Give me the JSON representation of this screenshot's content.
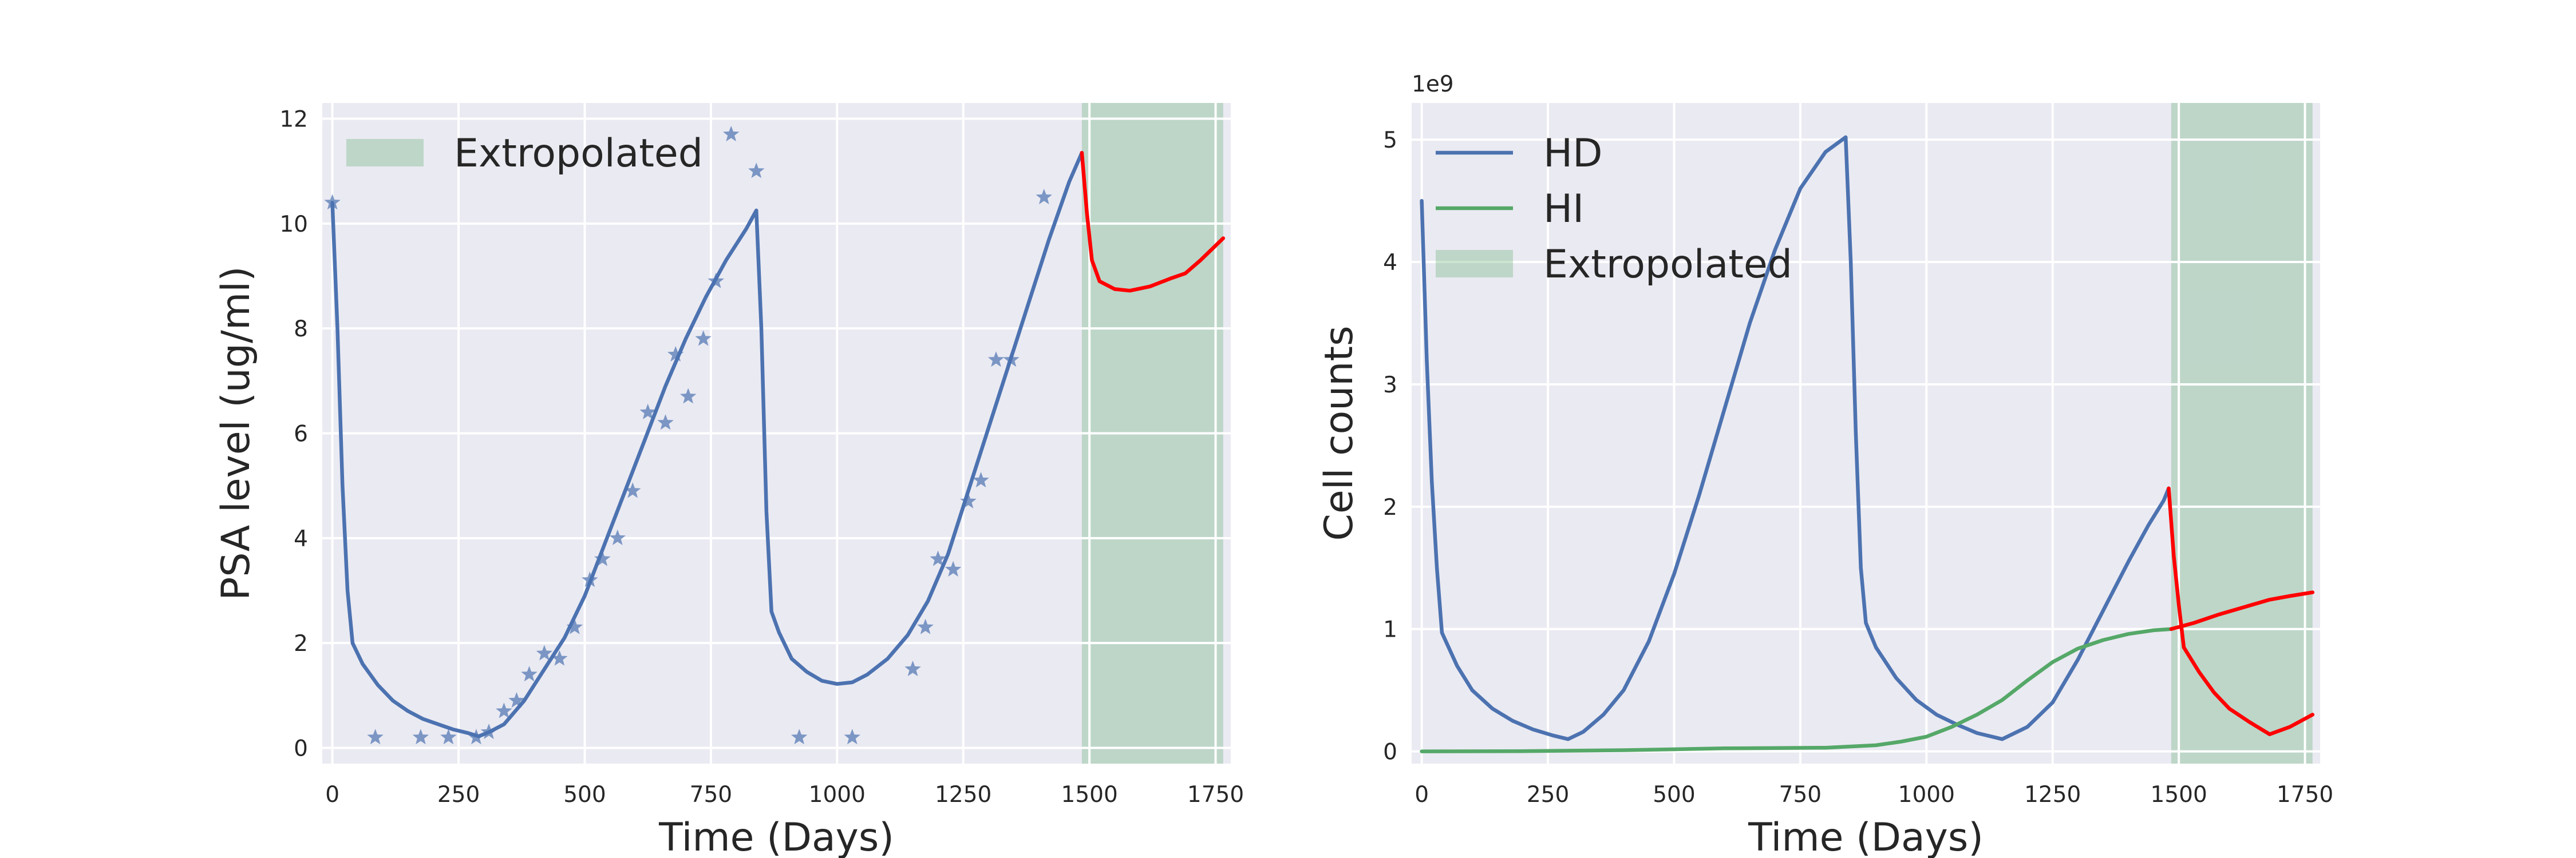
{
  "colors": {
    "axes_bg": "#EAEAF2",
    "grid": "#FFFFFF",
    "blue": "#4C72B0",
    "green": "#55A868",
    "red": "#FF0000",
    "shade": "#55A868"
  },
  "chart_data": [
    {
      "type": "line",
      "xlabel": "Time (Days)",
      "ylabel": "PSA level (ug/ml)",
      "xlim": [
        -20,
        1780
      ],
      "ylim": [
        -0.3,
        12.3
      ],
      "x_ticks": [
        0,
        250,
        500,
        750,
        1000,
        1250,
        1500,
        1750
      ],
      "y_ticks": [
        0,
        2,
        4,
        6,
        8,
        10,
        12
      ],
      "grid": true,
      "legend_position": "top-left",
      "legend": [
        {
          "label": "Extropolated",
          "kind": "patch",
          "color": "#55A868"
        }
      ],
      "shaded_region": {
        "label": "Extropolated",
        "x_start": 1485,
        "x_end": 1765
      },
      "series": [
        {
          "kind": "line",
          "color": "#4C72B0",
          "points": [
            [
              0,
              10.4
            ],
            [
              10,
              8.0
            ],
            [
              20,
              5.0
            ],
            [
              30,
              3.0
            ],
            [
              40,
              2.0
            ],
            [
              60,
              1.6
            ],
            [
              90,
              1.2
            ],
            [
              120,
              0.9
            ],
            [
              150,
              0.7
            ],
            [
              180,
              0.55
            ],
            [
              210,
              0.45
            ],
            [
              240,
              0.35
            ],
            [
              270,
              0.28
            ],
            [
              290,
              0.22
            ],
            [
              310,
              0.3
            ],
            [
              340,
              0.45
            ],
            [
              380,
              0.9
            ],
            [
              420,
              1.5
            ],
            [
              460,
              2.1
            ],
            [
              500,
              2.9
            ],
            [
              540,
              3.9
            ],
            [
              580,
              4.9
            ],
            [
              620,
              5.9
            ],
            [
              660,
              6.9
            ],
            [
              700,
              7.8
            ],
            [
              740,
              8.6
            ],
            [
              780,
              9.3
            ],
            [
              820,
              9.9
            ],
            [
              840,
              10.25
            ],
            [
              850,
              8.0
            ],
            [
              860,
              4.5
            ],
            [
              870,
              2.6
            ],
            [
              885,
              2.2
            ],
            [
              910,
              1.7
            ],
            [
              940,
              1.45
            ],
            [
              970,
              1.28
            ],
            [
              1000,
              1.22
            ],
            [
              1030,
              1.25
            ],
            [
              1060,
              1.4
            ],
            [
              1100,
              1.7
            ],
            [
              1140,
              2.15
            ],
            [
              1180,
              2.8
            ],
            [
              1220,
              3.7
            ],
            [
              1260,
              4.9
            ],
            [
              1300,
              6.1
            ],
            [
              1340,
              7.3
            ],
            [
              1380,
              8.5
            ],
            [
              1420,
              9.7
            ],
            [
              1460,
              10.8
            ],
            [
              1485,
              11.35
            ]
          ]
        },
        {
          "kind": "line",
          "color": "#FF0000",
          "points": [
            [
              1485,
              11.35
            ],
            [
              1495,
              10.2
            ],
            [
              1505,
              9.3
            ],
            [
              1520,
              8.9
            ],
            [
              1550,
              8.75
            ],
            [
              1580,
              8.72
            ],
            [
              1620,
              8.8
            ],
            [
              1660,
              8.95
            ],
            [
              1690,
              9.05
            ],
            [
              1720,
              9.3
            ],
            [
              1765,
              9.72
            ]
          ]
        },
        {
          "kind": "scatter",
          "marker": "star",
          "color": "#4C72B0",
          "points": [
            [
              0,
              10.4
            ],
            [
              85,
              0.2
            ],
            [
              175,
              0.2
            ],
            [
              230,
              0.2
            ],
            [
              285,
              0.2
            ],
            [
              310,
              0.3
            ],
            [
              340,
              0.7
            ],
            [
              365,
              0.9
            ],
            [
              390,
              1.4
            ],
            [
              420,
              1.8
            ],
            [
              450,
              1.7
            ],
            [
              480,
              2.3
            ],
            [
              510,
              3.2
            ],
            [
              535,
              3.6
            ],
            [
              565,
              4.0
            ],
            [
              595,
              4.9
            ],
            [
              625,
              6.4
            ],
            [
              660,
              6.2
            ],
            [
              680,
              7.5
            ],
            [
              705,
              6.7
            ],
            [
              735,
              7.8
            ],
            [
              760,
              8.9
            ],
            [
              790,
              11.7
            ],
            [
              840,
              11.0
            ],
            [
              925,
              0.2
            ],
            [
              1030,
              0.2
            ],
            [
              1150,
              1.5
            ],
            [
              1175,
              2.3
            ],
            [
              1200,
              3.6
            ],
            [
              1230,
              3.4
            ],
            [
              1260,
              4.7
            ],
            [
              1285,
              5.1
            ],
            [
              1315,
              7.4
            ],
            [
              1345,
              7.4
            ],
            [
              1410,
              10.5
            ]
          ]
        }
      ]
    },
    {
      "type": "line",
      "xlabel": "Time (Days)",
      "ylabel": "Cell counts",
      "y_offset_label": "1e9",
      "xlim": [
        -20,
        1780
      ],
      "ylim": [
        -100000000.0,
        5300000000.0
      ],
      "x_ticks": [
        0,
        250,
        500,
        750,
        1000,
        1250,
        1500,
        1750
      ],
      "y_ticks": [
        0,
        1,
        2,
        3,
        4,
        5
      ],
      "y_tick_scale": 1000000000.0,
      "grid": true,
      "legend_position": "top-left",
      "legend": [
        {
          "label": "HD",
          "kind": "line",
          "color": "#4C72B0"
        },
        {
          "label": "HI",
          "kind": "line",
          "color": "#55A868"
        },
        {
          "label": "Extropolated",
          "kind": "patch",
          "color": "#55A868"
        }
      ],
      "shaded_region": {
        "label": "Extropolated",
        "x_start": 1485,
        "x_end": 1765
      },
      "series": [
        {
          "name": "HD",
          "kind": "line",
          "color": "#4C72B0",
          "points": [
            [
              0,
              4500000000.0
            ],
            [
              10,
              3200000000.0
            ],
            [
              20,
              2200000000.0
            ],
            [
              30,
              1500000000.0
            ],
            [
              40,
              970000000.0
            ],
            [
              70,
              700000000.0
            ],
            [
              100,
              500000000.0
            ],
            [
              140,
              350000000.0
            ],
            [
              180,
              250000000.0
            ],
            [
              220,
              180000000.0
            ],
            [
              260,
              130000000.0
            ],
            [
              290,
              100000000.0
            ],
            [
              320,
              160000000.0
            ],
            [
              360,
              300000000.0
            ],
            [
              400,
              500000000.0
            ],
            [
              450,
              900000000.0
            ],
            [
              500,
              1450000000.0
            ],
            [
              550,
              2100000000.0
            ],
            [
              600,
              2800000000.0
            ],
            [
              650,
              3500000000.0
            ],
            [
              700,
              4100000000.0
            ],
            [
              750,
              4600000000.0
            ],
            [
              800,
              4900000000.0
            ],
            [
              840,
              5020000000.0
            ],
            [
              850,
              4000000000.0
            ],
            [
              860,
              2600000000.0
            ],
            [
              870,
              1500000000.0
            ],
            [
              880,
              1050000000.0
            ],
            [
              900,
              850000000.0
            ],
            [
              940,
              600000000.0
            ],
            [
              980,
              420000000.0
            ],
            [
              1020,
              300000000.0
            ],
            [
              1060,
              220000000.0
            ],
            [
              1100,
              150000000.0
            ],
            [
              1150,
              100000000.0
            ],
            [
              1200,
              200000000.0
            ],
            [
              1250,
              400000000.0
            ],
            [
              1300,
              750000000.0
            ],
            [
              1350,
              1150000000.0
            ],
            [
              1400,
              1550000000.0
            ],
            [
              1440,
              1850000000.0
            ],
            [
              1470,
              2050000000.0
            ],
            [
              1480,
              2150000000.0
            ]
          ]
        },
        {
          "name": "HD (extrapolated)",
          "kind": "line",
          "color": "#FF0000",
          "points": [
            [
              1480,
              2150000000.0
            ],
            [
              1490,
              1600000000.0
            ],
            [
              1500,
              1200000000.0
            ],
            [
              1510,
              850000000.0
            ],
            [
              1540,
              650000000.0
            ],
            [
              1570,
              480000000.0
            ],
            [
              1600,
              350000000.0
            ],
            [
              1640,
              240000000.0
            ],
            [
              1680,
              140000000.0
            ],
            [
              1720,
              200000000.0
            ],
            [
              1765,
              300000000.0
            ]
          ]
        },
        {
          "name": "HI",
          "kind": "line",
          "color": "#55A868",
          "points": [
            [
              0,
              0
            ],
            [
              200,
              2000000.0
            ],
            [
              400,
              10000000.0
            ],
            [
              600,
              25000000.0
            ],
            [
              800,
              30000000.0
            ],
            [
              900,
              50000000.0
            ],
            [
              950,
              80000000.0
            ],
            [
              1000,
              120000000.0
            ],
            [
              1050,
              200000000.0
            ],
            [
              1100,
              300000000.0
            ],
            [
              1150,
              420000000.0
            ],
            [
              1200,
              580000000.0
            ],
            [
              1250,
              730000000.0
            ],
            [
              1300,
              840000000.0
            ],
            [
              1350,
              910000000.0
            ],
            [
              1400,
              960000000.0
            ],
            [
              1450,
              990000000.0
            ],
            [
              1485,
              1000000000.0
            ]
          ]
        },
        {
          "name": "HI (extrapolated)",
          "kind": "line",
          "color": "#FF0000",
          "points": [
            [
              1485,
              1000000000.0
            ],
            [
              1530,
              1050000000.0
            ],
            [
              1580,
              1120000000.0
            ],
            [
              1630,
              1180000000.0
            ],
            [
              1680,
              1240000000.0
            ],
            [
              1720,
              1270000000.0
            ],
            [
              1765,
              1300000000.0
            ]
          ]
        }
      ]
    }
  ]
}
